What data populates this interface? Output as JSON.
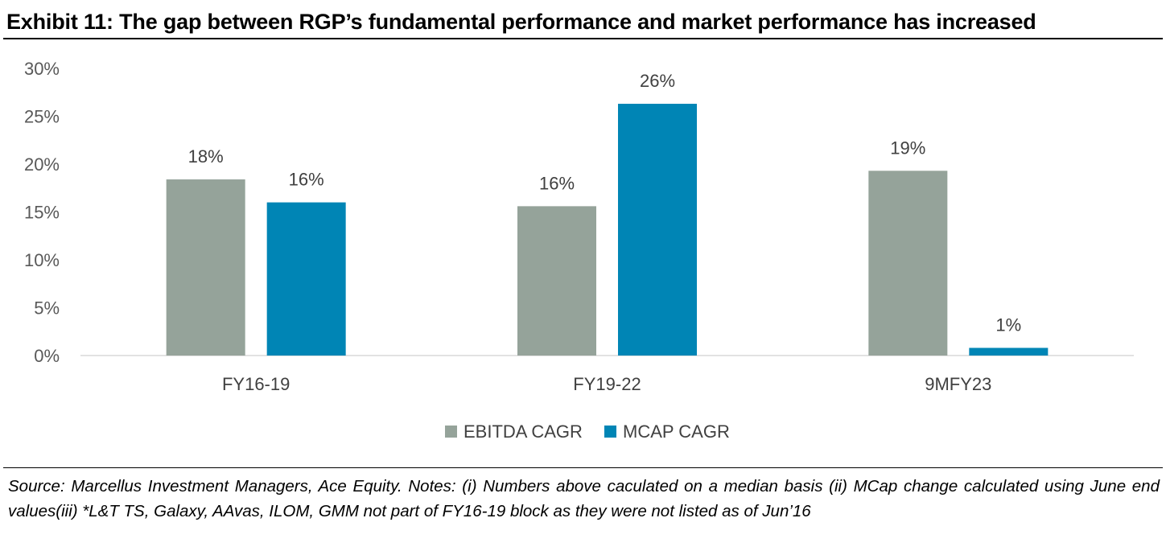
{
  "title": "Exhibit 11: The gap between RGP’s fundamental performance and market performance has increased",
  "source_note": "Source: Marcellus Investment Managers, Ace Equity. Notes: (i) Numbers above caculated on a median basis (ii) MCap change calculated using June end values(iii) *L&T TS, Galaxy, AAvas, ILOM, GMM not part of FY16-19 block as they were not listed as of Jun’16",
  "chart_data": {
    "type": "bar",
    "title": "Exhibit 11: The gap between RGP’s fundamental performance and market performance has increased",
    "xlabel": "",
    "ylabel": "",
    "categories": [
      "FY16-19",
      "FY19-22",
      "9MFY23"
    ],
    "series": [
      {
        "name": "EBITDA CAGR",
        "color": "#95a39a",
        "values": [
          18.4,
          15.6,
          19.3
        ],
        "labels": [
          "18%",
          "16%",
          "19%"
        ]
      },
      {
        "name": "MCAP CAGR",
        "color": "#0085b5",
        "values": [
          16.0,
          26.3,
          0.8
        ],
        "labels": [
          "16%",
          "26%",
          "1%"
        ]
      }
    ],
    "ylim": [
      0,
      30
    ],
    "yticks": [
      0,
      5,
      10,
      15,
      20,
      25,
      30
    ],
    "ytick_labels": [
      "0%",
      "5%",
      "10%",
      "15%",
      "20%",
      "25%",
      "30%"
    ],
    "grid": false,
    "legend": "bottom-center",
    "axis_color": "#d9d9d9"
  }
}
